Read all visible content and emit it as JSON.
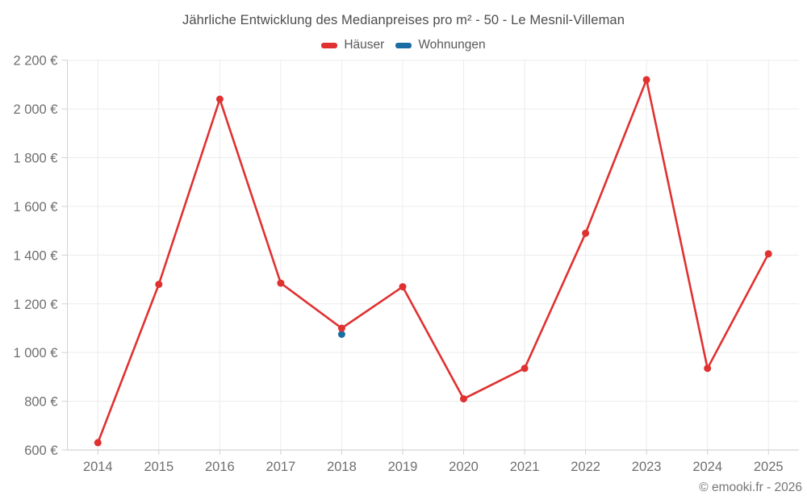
{
  "header": {
    "title": "Jährliche Entwicklung des Medianpreises pro m² - 50 - Le Mesnil-Villeman"
  },
  "footer": {
    "copyright": "© emooki.fr - 2026"
  },
  "chart_data": {
    "type": "line",
    "title": "Jährliche Entwicklung des Medianpreises pro m² - 50 - Le Mesnil-Villeman",
    "categories": [
      "2014",
      "2015",
      "2016",
      "2017",
      "2018",
      "2019",
      "2020",
      "2021",
      "2022",
      "2023",
      "2024",
      "2025"
    ],
    "series": [
      {
        "name": "Häuser",
        "color": "#e03131",
        "values": [
          630,
          1280,
          2040,
          1285,
          1100,
          1270,
          810,
          935,
          1490,
          2120,
          935,
          1405
        ]
      },
      {
        "name": "Wohnungen",
        "color": "#1a6da3",
        "values": [
          null,
          null,
          null,
          null,
          1075,
          null,
          null,
          null,
          null,
          null,
          null,
          null
        ]
      }
    ],
    "xlabel": "",
    "ylabel": "",
    "ylim": [
      600,
      2200
    ],
    "ytick_step": 200,
    "ytick_suffix": " €",
    "grid": true,
    "legend_position": "top",
    "colors": {
      "grid": "#ececec",
      "axis": "#d2d2d2",
      "tick_label": "#6e6e6e"
    }
  }
}
